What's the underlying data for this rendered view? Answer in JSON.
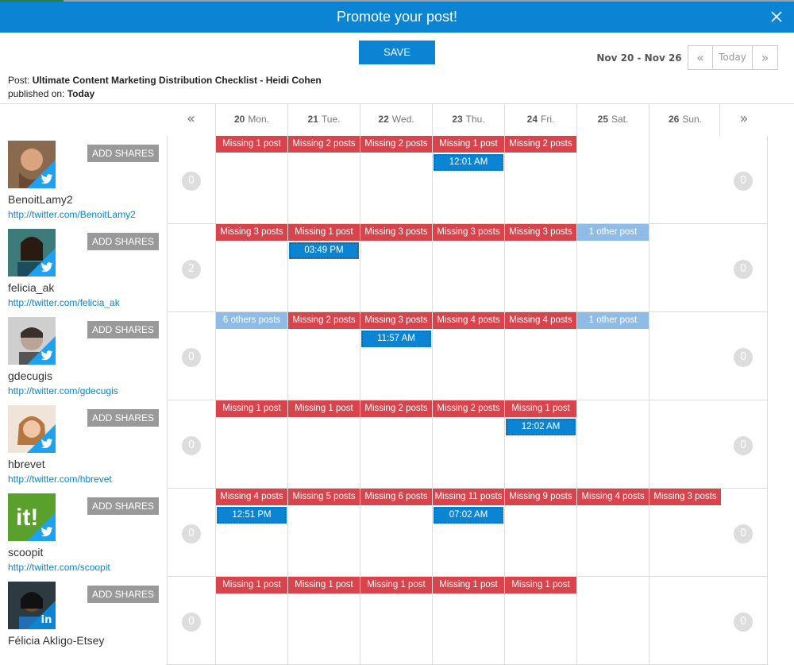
{
  "window": {
    "title": "Promote your post!"
  },
  "toolbar": {
    "save_label": "SAVE",
    "date_range": "Nov 20 - Nov 26",
    "prev_label": "«",
    "today_label": "Today",
    "next_label": "»"
  },
  "post": {
    "prefix": "Post: ",
    "title": "Ultimate Content Marketing Distribution Checklist - Heidi Cohen",
    "published_prefix": "published on: ",
    "published_value": "Today"
  },
  "calendar": {
    "prev_week": "«",
    "next_week": "»",
    "days": [
      {
        "num": "20",
        "name": "Mon."
      },
      {
        "num": "21",
        "name": "Tue."
      },
      {
        "num": "22",
        "name": "Wed."
      },
      {
        "num": "23",
        "name": "Thu."
      },
      {
        "num": "24",
        "name": "Fri."
      },
      {
        "num": "25",
        "name": "Sat."
      },
      {
        "num": "26",
        "name": "Sun."
      }
    ]
  },
  "add_shares_label": "ADD SHARES",
  "accounts": [
    {
      "name": "BenoitLamy2",
      "url": "http://twitter.com/BenoitLamy2",
      "network": "twitter",
      "left_count": "0",
      "right_count": "0",
      "cells": [
        {
          "label": "Missing 1 post",
          "kind": "missing",
          "time": ""
        },
        {
          "label": "Missing 2 posts",
          "kind": "missing",
          "time": ""
        },
        {
          "label": "Missing 2 posts",
          "kind": "missing",
          "time": ""
        },
        {
          "label": "Missing 1 post",
          "kind": "missing",
          "time": "12:01 AM"
        },
        {
          "label": "Missing 2 posts",
          "kind": "missing",
          "time": ""
        },
        {
          "label": "",
          "kind": "",
          "time": ""
        },
        {
          "label": "",
          "kind": "",
          "time": ""
        }
      ]
    },
    {
      "name": "felicia_ak",
      "url": "http://twitter.com/felicia_ak",
      "network": "twitter",
      "left_count": "2",
      "right_count": "0",
      "cells": [
        {
          "label": "Missing 3 posts",
          "kind": "missing",
          "time": ""
        },
        {
          "label": "Missing 1 post",
          "kind": "missing",
          "time": "03:49 PM"
        },
        {
          "label": "Missing 3 posts",
          "kind": "missing",
          "time": ""
        },
        {
          "label": "Missing 3 posts",
          "kind": "missing",
          "time": ""
        },
        {
          "label": "Missing 3 posts",
          "kind": "missing",
          "time": ""
        },
        {
          "label": "1 other post",
          "kind": "others",
          "time": ""
        },
        {
          "label": "",
          "kind": "",
          "time": ""
        }
      ]
    },
    {
      "name": "gdecugis",
      "url": "http://twitter.com/gdecugis",
      "network": "twitter",
      "left_count": "0",
      "right_count": "0",
      "cells": [
        {
          "label": "6 others posts",
          "kind": "others",
          "time": ""
        },
        {
          "label": "Missing 2 posts",
          "kind": "missing",
          "time": ""
        },
        {
          "label": "Missing 3 posts",
          "kind": "missing",
          "time": "11:57 AM"
        },
        {
          "label": "Missing 4 posts",
          "kind": "missing",
          "time": ""
        },
        {
          "label": "Missing 4 posts",
          "kind": "missing",
          "time": ""
        },
        {
          "label": "1 other post",
          "kind": "others",
          "time": ""
        },
        {
          "label": "",
          "kind": "",
          "time": ""
        }
      ]
    },
    {
      "name": "hbrevet",
      "url": "http://twitter.com/hbrevet",
      "network": "twitter",
      "left_count": "0",
      "right_count": "0",
      "cells": [
        {
          "label": "Missing 1 post",
          "kind": "missing",
          "time": ""
        },
        {
          "label": "Missing 1 post",
          "kind": "missing",
          "time": ""
        },
        {
          "label": "Missing 2 posts",
          "kind": "missing",
          "time": ""
        },
        {
          "label": "Missing 2 posts",
          "kind": "missing",
          "time": ""
        },
        {
          "label": "Missing 1 post",
          "kind": "missing",
          "time": "12:02 AM"
        },
        {
          "label": "",
          "kind": "",
          "time": ""
        },
        {
          "label": "",
          "kind": "",
          "time": ""
        }
      ]
    },
    {
      "name": "scoopit",
      "url": "http://twitter.com/scoopit",
      "network": "twitter",
      "left_count": "0",
      "right_count": "0",
      "cells": [
        {
          "label": "Missing 4 posts",
          "kind": "missing",
          "time": "12:51 PM"
        },
        {
          "label": "Missing 5 posts",
          "kind": "missing",
          "time": ""
        },
        {
          "label": "Missing 6 posts",
          "kind": "missing",
          "time": ""
        },
        {
          "label": "Missing 11 posts",
          "kind": "missing",
          "time": "07:02 AM"
        },
        {
          "label": "Missing 9 posts",
          "kind": "missing",
          "time": ""
        },
        {
          "label": "Missing 4 posts",
          "kind": "missing",
          "time": ""
        },
        {
          "label": "Missing 3 posts",
          "kind": "missing",
          "time": ""
        }
      ]
    },
    {
      "name": "Félicia Akligo-Etsey",
      "url": "",
      "network": "linkedin",
      "left_count": "0",
      "right_count": "0",
      "cells": [
        {
          "label": "Missing 1 post",
          "kind": "missing",
          "time": ""
        },
        {
          "label": "Missing 1 post",
          "kind": "missing",
          "time": ""
        },
        {
          "label": "Missing 1 post",
          "kind": "missing",
          "time": ""
        },
        {
          "label": "Missing 1 post",
          "kind": "missing",
          "time": ""
        },
        {
          "label": "Missing 1 post",
          "kind": "missing",
          "time": ""
        },
        {
          "label": "",
          "kind": "",
          "time": ""
        },
        {
          "label": "",
          "kind": "",
          "time": ""
        }
      ]
    }
  ],
  "colors": {
    "brand_blue": "#0a84d3",
    "missing_red": "#d9434b",
    "others_light_blue": "#8fbce6",
    "twitter_blue": "#1da1f2"
  }
}
